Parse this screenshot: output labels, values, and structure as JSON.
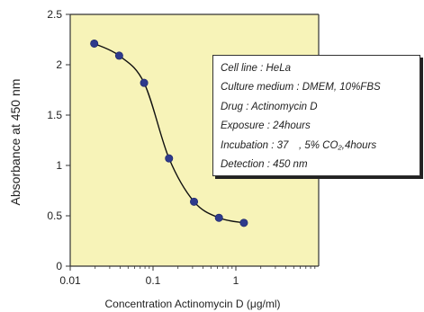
{
  "chart_data": {
    "type": "line",
    "xlabel": "Concentration Actinomycin D (μg/ml)",
    "ylabel": "Absorbance at 450 nm",
    "xscale": "log",
    "xlim": [
      0.01,
      10
    ],
    "ylim": [
      0,
      2.5
    ],
    "xticks": [
      0.01,
      0.1,
      1
    ],
    "xtick_labels": [
      "0.01",
      "0.1",
      "1"
    ],
    "yticks": [
      0,
      0.5,
      1,
      1.5,
      2,
      2.5
    ],
    "ytick_labels": [
      "0",
      "0.5",
      "1",
      "1.5",
      "2",
      "2.5"
    ],
    "grid": false,
    "plot_background": "#f7f3b8",
    "point_color": "#2e3a8c",
    "series": [
      {
        "x": [
          0.0195,
          0.039,
          0.078,
          0.156,
          0.3125,
          0.625,
          1.25
        ],
        "y": [
          2.21,
          2.09,
          1.82,
          1.07,
          0.64,
          0.48,
          0.43
        ]
      }
    ]
  },
  "annotation": {
    "lines": [
      "Cell line : HeLa",
      "Culture medium : DMEM, 10%FBS",
      "Drug : Actinomycin D",
      "Exposure : 24hours",
      "Incubation : 37　, 5% CO₂,4hours",
      "Detection : 450 nm"
    ]
  }
}
